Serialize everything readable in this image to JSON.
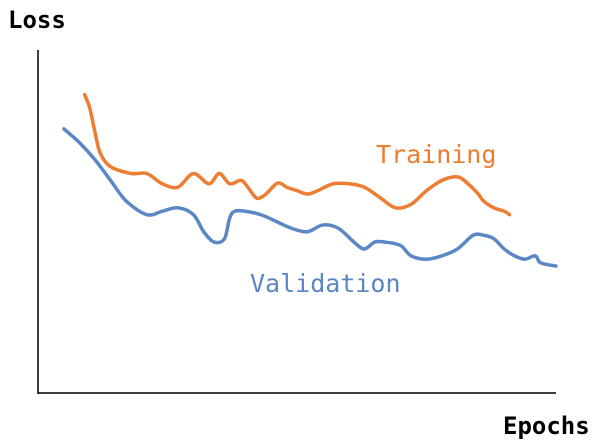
{
  "chart_data": {
    "type": "line",
    "xlabel": "Epochs",
    "ylabel": "Loss",
    "grid": false,
    "axis_ticks": false,
    "xlim": [
      0,
      100
    ],
    "ylim": [
      0,
      100
    ],
    "series": [
      {
        "name": "Training",
        "color": "#ED7D31",
        "x": [
          9,
          10,
          11,
          12,
          14,
          18,
          21,
          24,
          27,
          30,
          33,
          35,
          37,
          39,
          40,
          42,
          43,
          44,
          46,
          47,
          48,
          50,
          52,
          54,
          57,
          60,
          63,
          66,
          69,
          72,
          75,
          78,
          81,
          83,
          85,
          86,
          88,
          90,
          91
        ],
        "y": [
          87,
          83,
          76,
          70,
          66,
          64,
          64,
          61,
          60,
          64,
          61,
          64,
          61,
          62,
          61,
          57,
          57,
          58,
          61,
          61,
          60,
          59,
          58,
          59,
          61,
          61,
          60,
          57,
          54,
          55,
          59,
          62,
          63,
          61,
          58,
          56,
          54,
          53,
          52
        ]
      },
      {
        "name": "Validation",
        "color": "#5B87C5",
        "x": [
          5,
          8,
          11,
          14,
          17,
          21,
          24,
          27,
          30,
          32,
          34,
          36,
          37,
          38,
          40,
          43,
          46,
          49,
          52,
          55,
          58,
          61,
          63,
          65,
          67,
          70,
          72,
          75,
          78,
          81,
          84,
          86,
          88,
          90,
          92,
          94,
          96,
          97,
          100
        ],
        "y": [
          77,
          73,
          68,
          62,
          56,
          52,
          53,
          54,
          52,
          47,
          44,
          45,
          51,
          53,
          53,
          52,
          50,
          48,
          47,
          49,
          48,
          44,
          42,
          44,
          44,
          43,
          40,
          39,
          40,
          42,
          46,
          46,
          45,
          42,
          40,
          39,
          40,
          38,
          37
        ]
      }
    ]
  },
  "colors": {
    "axis": "#000000",
    "background": "#FFFFFF"
  }
}
